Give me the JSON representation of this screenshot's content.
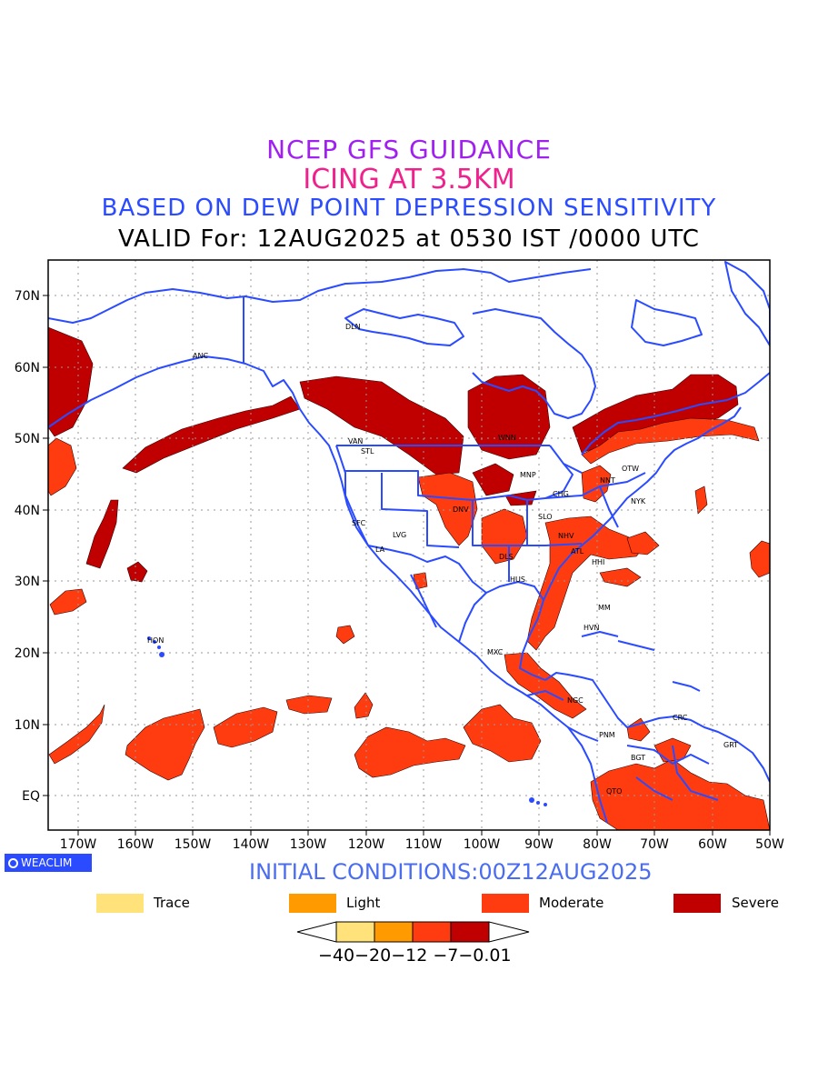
{
  "title": {
    "line1": "NCEP GFS GUIDANCE",
    "line2": "ICING AT 3.5KM",
    "line3": "BASED ON DEW POINT DEPRESSION SENSITIVITY",
    "line4": "VALID For: 12AUG2025 at 0530 IST /0000 UTC"
  },
  "map": {
    "lat_labels": [
      "70N",
      "60N",
      "50N",
      "40N",
      "30N",
      "20N",
      "10N",
      "EQ"
    ],
    "lon_labels": [
      "170W",
      "160W",
      "150W",
      "140W",
      "130W",
      "120W",
      "110W",
      "100W",
      "90W",
      "80W",
      "70W",
      "60W",
      "50W"
    ],
    "cities": [
      "ANC",
      "DLN",
      "VAN",
      "STL",
      "WNN",
      "OTW",
      "MNP",
      "NNT",
      "CHG",
      "NYK",
      "DNV",
      "SFC",
      "SLO",
      "LVG",
      "LA",
      "NHV",
      "ATL",
      "DLS",
      "HHI",
      "HUS",
      "MM",
      "HVN",
      "HON",
      "MXC",
      "NGC",
      "PNM",
      "CRC",
      "BGT",
      "GRT",
      "QTO"
    ],
    "colors": {
      "coast": "#2a4bff",
      "severe": "#c00000",
      "moderate": "#ff3c0f",
      "light": "#ff9b00",
      "trace": "#ffe37a"
    }
  },
  "logo": "WEACLIM",
  "initial_conditions": "INITIAL CONDITIONS:00Z12AUG2025",
  "legend": [
    {
      "label": "Trace",
      "color": "#ffe37a"
    },
    {
      "label": "Light",
      "color": "#ff9b00"
    },
    {
      "label": "Moderate",
      "color": "#ff3c0f"
    },
    {
      "label": "Severe",
      "color": "#c00000"
    }
  ],
  "colorbar": {
    "ticks": "−40−20−12 −7−0.01"
  }
}
